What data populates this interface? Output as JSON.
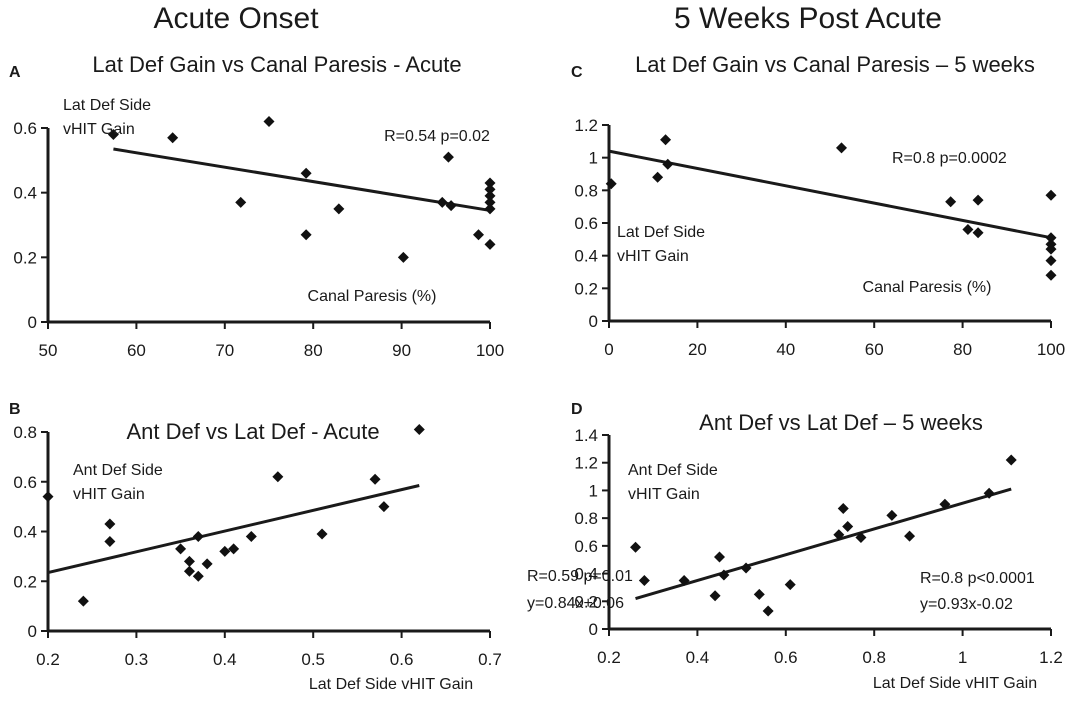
{
  "column_titles": [
    "Acute Onset",
    "5 Weeks Post Acute"
  ],
  "chart_data": [
    {
      "id": "A",
      "type": "scatter",
      "letter": "A",
      "title": "Lat Def Gain vs Canal Paresis - Acute",
      "ylabel_lines": [
        "Lat  Def  Side",
        "vHIT Gain"
      ],
      "xlabel": "Canal Paresis (%)",
      "stats": [
        "R=0.54 p=0.02"
      ],
      "xlim": [
        50,
        100
      ],
      "ylim": [
        0,
        0.6
      ],
      "xticks": [
        "50",
        "60",
        "70",
        "80",
        "90",
        "100"
      ],
      "yticks": [
        "0",
        "0.2",
        "0.4",
        "0.6"
      ],
      "points": [
        [
          57.4,
          0.58
        ],
        [
          64.1,
          0.57
        ],
        [
          71.8,
          0.37
        ],
        [
          75,
          0.62
        ],
        [
          79.2,
          0.46
        ],
        [
          79.2,
          0.27
        ],
        [
          82.9,
          0.35
        ],
        [
          90.2,
          0.2
        ],
        [
          94.6,
          0.37
        ],
        [
          95.3,
          0.51
        ],
        [
          95.6,
          0.36
        ],
        [
          98.7,
          0.27
        ],
        [
          100,
          0.43
        ],
        [
          100,
          0.41
        ],
        [
          100,
          0.39
        ],
        [
          100,
          0.37
        ],
        [
          100,
          0.35
        ],
        [
          100,
          0.24
        ]
      ],
      "trendline": [
        [
          57.4,
          0.535
        ],
        [
          100,
          0.345
        ]
      ]
    },
    {
      "id": "B",
      "type": "scatter",
      "letter": "B",
      "title": "Ant Def  vs Lat Def - Acute",
      "ylabel_lines": [
        "Ant  Def  Side",
        "vHIT Gain"
      ],
      "xlabel": "Lat  Def  Side  vHIT Gain",
      "stats": [
        "R=0.59  p=0.01",
        "y=0.84x+0.06"
      ],
      "xlim": [
        0.2,
        0.7
      ],
      "ylim": [
        0,
        0.8
      ],
      "xticks": [
        "0.2",
        "0.3",
        "0.4",
        "0.5",
        "0.6",
        "0.7"
      ],
      "yticks": [
        "0",
        "0.2",
        "0.4",
        "0.6",
        "0.8"
      ],
      "points": [
        [
          0.2,
          0.54
        ],
        [
          0.24,
          0.12
        ],
        [
          0.27,
          0.43
        ],
        [
          0.27,
          0.36
        ],
        [
          0.35,
          0.33
        ],
        [
          0.36,
          0.28
        ],
        [
          0.36,
          0.24
        ],
        [
          0.37,
          0.38
        ],
        [
          0.37,
          0.22
        ],
        [
          0.38,
          0.27
        ],
        [
          0.4,
          0.32
        ],
        [
          0.41,
          0.33
        ],
        [
          0.43,
          0.38
        ],
        [
          0.46,
          0.62
        ],
        [
          0.51,
          0.39
        ],
        [
          0.57,
          0.61
        ],
        [
          0.58,
          0.5
        ],
        [
          0.62,
          0.81
        ]
      ],
      "trendline": [
        [
          0.2,
          0.235
        ],
        [
          0.62,
          0.585
        ]
      ]
    },
    {
      "id": "C",
      "type": "scatter",
      "letter": "C",
      "title": "Lat Def Gain vs Canal Paresis – 5 weeks",
      "ylabel_lines": [
        "Lat  Def  Side",
        "vHIT Gain"
      ],
      "xlabel": "Canal Paresis (%)",
      "stats": [
        "R=0.8  p=0.0002"
      ],
      "xlim": [
        0,
        100
      ],
      "ylim": [
        0,
        1.2
      ],
      "xticks": [
        "0",
        "20",
        "40",
        "60",
        "80",
        "100"
      ],
      "yticks": [
        "0",
        "0.2",
        "0.4",
        "0.6",
        "0.8",
        "1",
        "1.2"
      ],
      "points": [
        [
          0.5,
          0.84
        ],
        [
          11,
          0.88
        ],
        [
          12.8,
          1.11
        ],
        [
          13.3,
          0.96
        ],
        [
          52.6,
          1.06
        ],
        [
          77.3,
          0.73
        ],
        [
          81.2,
          0.56
        ],
        [
          83.5,
          0.74
        ],
        [
          83.5,
          0.54
        ],
        [
          100,
          0.77
        ],
        [
          100,
          0.51
        ],
        [
          100,
          0.47
        ],
        [
          100,
          0.44
        ],
        [
          100,
          0.37
        ],
        [
          100,
          0.28
        ]
      ],
      "trendline": [
        [
          0,
          1.04
        ],
        [
          100,
          0.51
        ]
      ]
    },
    {
      "id": "D",
      "type": "scatter",
      "letter": "D",
      "title": "Ant Def vs Lat Def – 5 weeks",
      "ylabel_lines": [
        "Ant  Def  Side",
        "vHIT Gain"
      ],
      "xlabel": "Lat  Def  Side  vHIT Gain",
      "stats": [
        "R=0.8  p<0.0001",
        "y=0.93x-0.02"
      ],
      "xlim": [
        0.2,
        1.2
      ],
      "ylim": [
        0,
        1.4
      ],
      "xticks": [
        "0.2",
        "0.4",
        "0.6",
        "0.8",
        "1",
        "1.2"
      ],
      "yticks": [
        "0",
        "0.2",
        "0.4",
        "0.6",
        "0.8",
        "1",
        "1.2",
        "1.4"
      ],
      "points": [
        [
          0.26,
          0.59
        ],
        [
          0.28,
          0.35
        ],
        [
          0.37,
          0.35
        ],
        [
          0.44,
          0.24
        ],
        [
          0.45,
          0.52
        ],
        [
          0.46,
          0.39
        ],
        [
          0.51,
          0.44
        ],
        [
          0.54,
          0.25
        ],
        [
          0.56,
          0.13
        ],
        [
          0.61,
          0.32
        ],
        [
          0.72,
          0.68
        ],
        [
          0.73,
          0.87
        ],
        [
          0.74,
          0.74
        ],
        [
          0.77,
          0.66
        ],
        [
          0.84,
          0.82
        ],
        [
          0.88,
          0.67
        ],
        [
          0.96,
          0.9
        ],
        [
          1.06,
          0.98
        ],
        [
          1.11,
          1.22
        ]
      ],
      "trendline": [
        [
          0.26,
          0.22
        ],
        [
          1.11,
          1.01
        ]
      ]
    }
  ]
}
